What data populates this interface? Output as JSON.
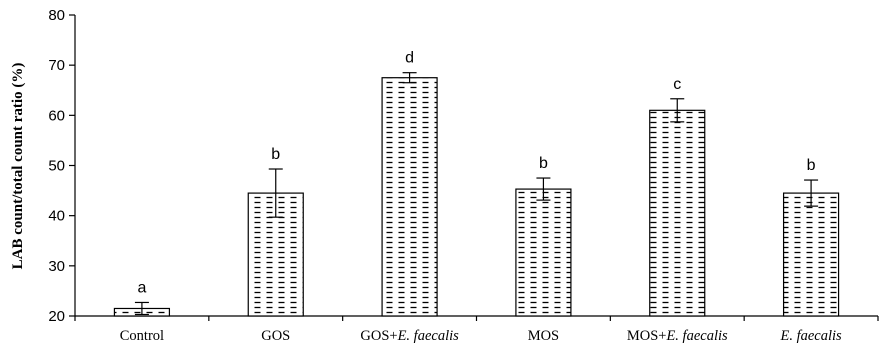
{
  "chart_data": {
    "type": "bar",
    "title": "",
    "xlabel": "",
    "ylabel": "LAB count/total count ratio (%)",
    "ylim": [
      20,
      80
    ],
    "yticks": [
      "20",
      "30",
      "40",
      "50",
      "60",
      "70",
      "80"
    ],
    "grid": false,
    "categories": [
      {
        "plain": "Control",
        "italic": ""
      },
      {
        "plain": "GOS",
        "italic": ""
      },
      {
        "plain": "GOS+",
        "italic": "E. faecalis"
      },
      {
        "plain": "MOS",
        "italic": ""
      },
      {
        "plain": "MOS+",
        "italic": "E. faecalis"
      },
      {
        "plain": "",
        "italic": "E. faecalis"
      }
    ],
    "values": [
      21.5,
      44.5,
      67.5,
      45.3,
      61.0,
      44.5
    ],
    "errors": [
      1.2,
      4.8,
      1.0,
      2.2,
      2.3,
      2.6
    ],
    "significance_letters": [
      "a",
      "b",
      "d",
      "b",
      "c",
      "b"
    ],
    "bar_fill": "dashed-hatch",
    "colors": {
      "bar_stroke": "#000000",
      "hatch": "#000000",
      "background": "#ffffff"
    }
  }
}
